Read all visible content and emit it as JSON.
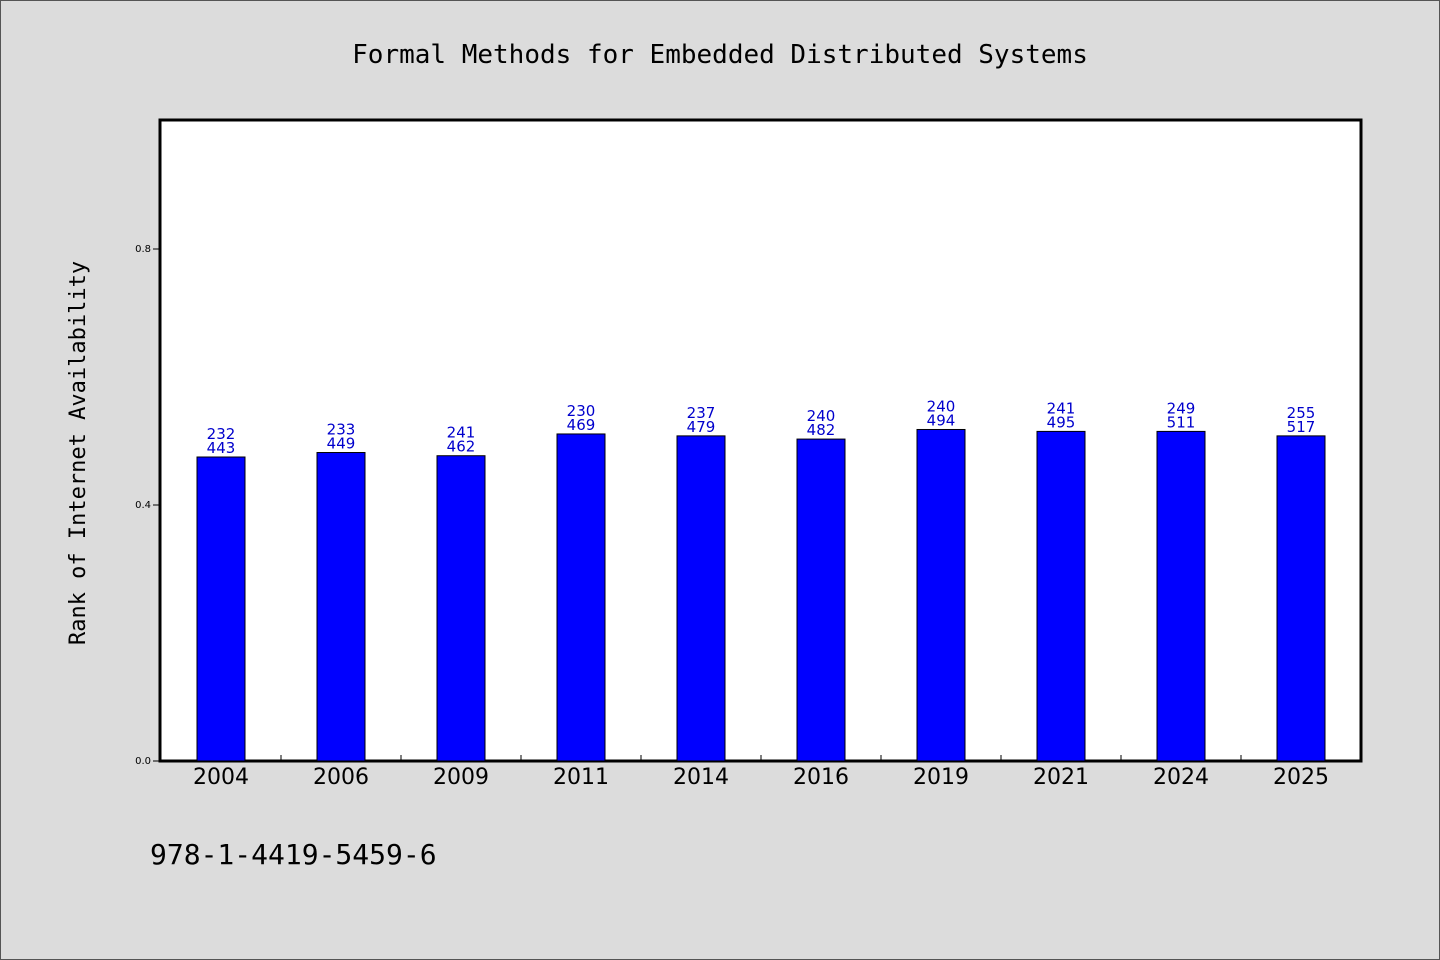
{
  "chart_data": {
    "type": "bar",
    "title": "Formal Methods for Embedded Distributed Systems",
    "xlabel": "",
    "ylabel": "Rank of Internet Availability",
    "categories": [
      "2004",
      "2006",
      "2009",
      "2011",
      "2014",
      "2016",
      "2019",
      "2021",
      "2024",
      "2025"
    ],
    "values": [
      0.475,
      0.482,
      0.477,
      0.511,
      0.508,
      0.503,
      0.518,
      0.515,
      0.515,
      0.508
    ],
    "data_labels": [
      [
        "232",
        "443"
      ],
      [
        "233",
        "449"
      ],
      [
        "241",
        "462"
      ],
      [
        "230",
        "469"
      ],
      [
        "237",
        "479"
      ],
      [
        "240",
        "482"
      ],
      [
        "240",
        "494"
      ],
      [
        "241",
        "495"
      ],
      [
        "249",
        "511"
      ],
      [
        "255",
        "517"
      ]
    ],
    "ylim": [
      0.0,
      1.0
    ],
    "yticks": [
      0.0,
      0.4,
      0.8
    ],
    "ytick_labels": [
      "0.0",
      "0.4",
      "0.8"
    ],
    "grid": false,
    "legend": "none",
    "colors": {
      "bar_fill": "#0000ff",
      "bar_edge": "#000000",
      "data_label": "#0000cc",
      "plot_background": "#ffffff",
      "page_background": "#dcdcdc"
    }
  },
  "footnote": "978-1-4419-5459-6"
}
